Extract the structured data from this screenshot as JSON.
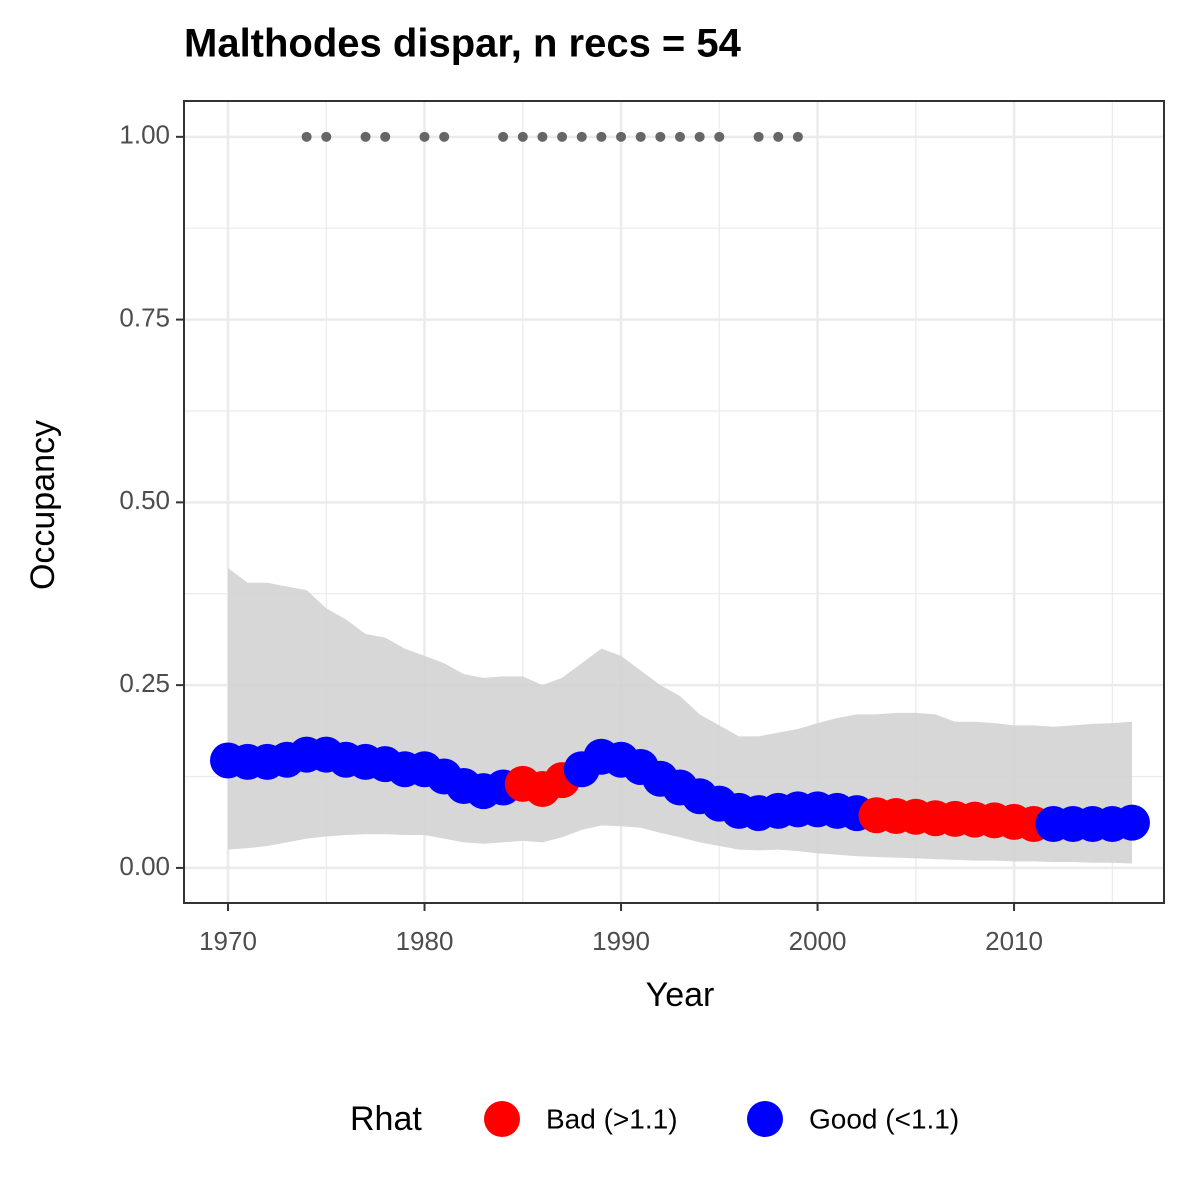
{
  "chart_data": {
    "type": "scatter",
    "title": "Malthodes dispar, n recs = 54",
    "x_label": "Year",
    "y_label": "Occupancy",
    "x": [
      1970,
      1971,
      1972,
      1973,
      1974,
      1975,
      1976,
      1977,
      1978,
      1979,
      1980,
      1981,
      1982,
      1983,
      1984,
      1985,
      1986,
      1987,
      1988,
      1989,
      1990,
      1991,
      1992,
      1993,
      1994,
      1995,
      1996,
      1997,
      1998,
      1999,
      2000,
      2001,
      2002,
      2003,
      2004,
      2005,
      2006,
      2007,
      2008,
      2009,
      2010,
      2011,
      2012,
      2013,
      2014,
      2015,
      2016
    ],
    "series": [
      {
        "name": "Bad (>1.1)",
        "color": "#ff0000",
        "values": [
          null,
          null,
          null,
          null,
          null,
          null,
          null,
          null,
          null,
          null,
          null,
          null,
          null,
          null,
          null,
          0.115,
          0.108,
          0.12,
          null,
          null,
          null,
          null,
          null,
          null,
          null,
          null,
          null,
          null,
          null,
          null,
          null,
          null,
          null,
          0.072,
          0.071,
          0.07,
          0.068,
          0.067,
          0.066,
          0.065,
          0.063,
          0.06,
          null,
          null,
          null,
          null,
          null
        ]
      },
      {
        "name": "Good (<1.1)",
        "color": "#0000ff",
        "values": [
          0.147,
          0.145,
          0.145,
          0.148,
          0.155,
          0.155,
          0.148,
          0.145,
          0.142,
          0.135,
          0.135,
          0.125,
          0.112,
          0.105,
          0.11,
          null,
          null,
          null,
          0.135,
          0.152,
          0.148,
          0.138,
          0.122,
          0.11,
          0.098,
          0.088,
          0.078,
          0.075,
          0.078,
          0.08,
          0.08,
          0.078,
          0.075,
          null,
          null,
          null,
          null,
          null,
          null,
          null,
          null,
          null,
          0.06,
          0.06,
          0.06,
          0.06,
          0.062
        ]
      }
    ],
    "ribbon_upper": [
      0.41,
      0.39,
      0.39,
      0.385,
      0.38,
      0.355,
      0.34,
      0.32,
      0.315,
      0.3,
      0.29,
      0.28,
      0.265,
      0.26,
      0.262,
      0.262,
      0.25,
      0.26,
      0.28,
      0.3,
      0.29,
      0.27,
      0.25,
      0.235,
      0.21,
      0.195,
      0.18,
      0.18,
      0.185,
      0.19,
      0.198,
      0.205,
      0.21,
      0.21,
      0.212,
      0.212,
      0.21,
      0.2,
      0.2,
      0.198,
      0.195,
      0.195,
      0.193,
      0.195,
      0.197,
      0.198,
      0.2
    ],
    "ribbon_lower": [
      0.025,
      0.027,
      0.03,
      0.035,
      0.04,
      0.043,
      0.045,
      0.046,
      0.046,
      0.045,
      0.045,
      0.04,
      0.035,
      0.033,
      0.035,
      0.037,
      0.035,
      0.042,
      0.052,
      0.058,
      0.057,
      0.055,
      0.048,
      0.042,
      0.035,
      0.03,
      0.025,
      0.024,
      0.025,
      0.023,
      0.02,
      0.018,
      0.016,
      0.015,
      0.014,
      0.013,
      0.012,
      0.011,
      0.01,
      0.01,
      0.009,
      0.009,
      0.008,
      0.008,
      0.007,
      0.007,
      0.006
    ],
    "ribbon_color": "#d3d3d3",
    "records_x": [
      1974,
      1975,
      1977,
      1978,
      1980,
      1981,
      1984,
      1985,
      1986,
      1987,
      1988,
      1989,
      1990,
      1991,
      1992,
      1993,
      1994,
      1995,
      1997,
      1998,
      1999
    ],
    "records_y": [
      1,
      1,
      1,
      1,
      1,
      1,
      1,
      1,
      1,
      1,
      1,
      1,
      1,
      1,
      1,
      1,
      1,
      1,
      1,
      1,
      1
    ],
    "records_color": "#666666",
    "legend_title": "Rhat",
    "legend": "bottom",
    "xlim": [
      1967.76,
      2017.63
    ],
    "xticks": [
      1970,
      1980,
      1990,
      2000,
      2010
    ],
    "xminorticks": [
      1975,
      1985,
      1995,
      2005,
      2015
    ],
    "ylim": [
      -0.048,
      1.049
    ],
    "yticks": [
      {
        "value": 0,
        "label": "0.00"
      },
      {
        "value": 0.25,
        "label": "0.25"
      },
      {
        "value": 0.5,
        "label": "0.50"
      },
      {
        "value": 0.75,
        "label": "0.75"
      },
      {
        "value": 1,
        "label": "1.00"
      }
    ],
    "yminorticks": [
      0.125,
      0.375,
      0.625,
      0.875
    ],
    "grid": true
  }
}
